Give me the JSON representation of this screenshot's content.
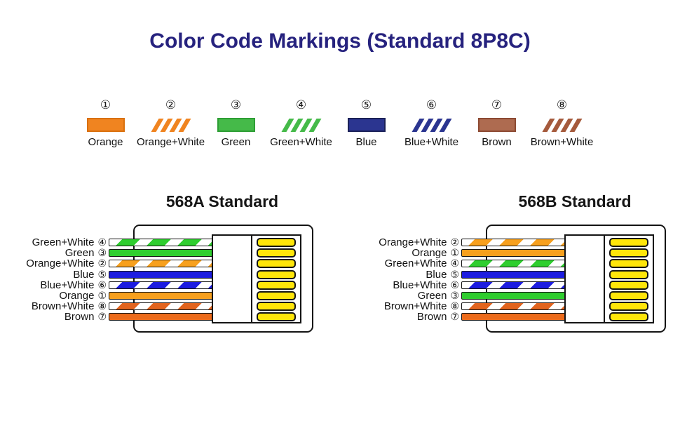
{
  "title": "Color Code Markings (Standard 8P8C)",
  "legend": {
    "items": [
      {
        "num": "①",
        "label": "Orange"
      },
      {
        "num": "②",
        "label": "Orange+White"
      },
      {
        "num": "③",
        "label": "Green"
      },
      {
        "num": "④",
        "label": "Green+White"
      },
      {
        "num": "⑤",
        "label": "Blue"
      },
      {
        "num": "⑥",
        "label": "Blue+White"
      },
      {
        "num": "⑦",
        "label": "Brown"
      },
      {
        "num": "⑧",
        "label": "Brown+White"
      }
    ]
  },
  "diagrams": [
    {
      "title": "568A Standard",
      "pins_per_connector": 8,
      "wires": [
        {
          "label": "Green+White",
          "num": "④",
          "pattern": "green-white"
        },
        {
          "label": "Green",
          "num": "③",
          "pattern": "green"
        },
        {
          "label": "Orange+White",
          "num": "②",
          "pattern": "orange-white"
        },
        {
          "label": "Blue",
          "num": "⑤",
          "pattern": "blue"
        },
        {
          "label": "Blue+White",
          "num": "⑥",
          "pattern": "blue-white"
        },
        {
          "label": "Orange",
          "num": "①",
          "pattern": "orange"
        },
        {
          "label": "Brown+White",
          "num": "⑧",
          "pattern": "brown-white"
        },
        {
          "label": "Brown",
          "num": "⑦",
          "pattern": "brown"
        }
      ]
    },
    {
      "title": "568B Standard",
      "pins_per_connector": 8,
      "wires": [
        {
          "label": "Orange+White",
          "num": "②",
          "pattern": "orange-white"
        },
        {
          "label": "Orange",
          "num": "①",
          "pattern": "orange"
        },
        {
          "label": "Green+White",
          "num": "④",
          "pattern": "green-white"
        },
        {
          "label": "Blue",
          "num": "⑤",
          "pattern": "blue"
        },
        {
          "label": "Blue+White",
          "num": "⑥",
          "pattern": "blue-white"
        },
        {
          "label": "Green",
          "num": "③",
          "pattern": "green"
        },
        {
          "label": "Brown+White",
          "num": "⑧",
          "pattern": "brown-white"
        },
        {
          "label": "Brown",
          "num": "⑦",
          "pattern": "brown"
        }
      ]
    }
  ],
  "colors": {
    "title_text": "#26227e",
    "legend_orange": "#f08420",
    "legend_green": "#45ba49",
    "legend_blue": "#2b3590",
    "legend_brown": "#ae6b50",
    "wire_orange": "#f7a01e",
    "wire_green": "#2fce2f",
    "wire_blue": "#1c1ce0",
    "wire_brown": "#ec6a1a",
    "wire_brown_stripe": "#e2641e",
    "pin_yellow": "#ffe60a",
    "outline": "#141414"
  }
}
